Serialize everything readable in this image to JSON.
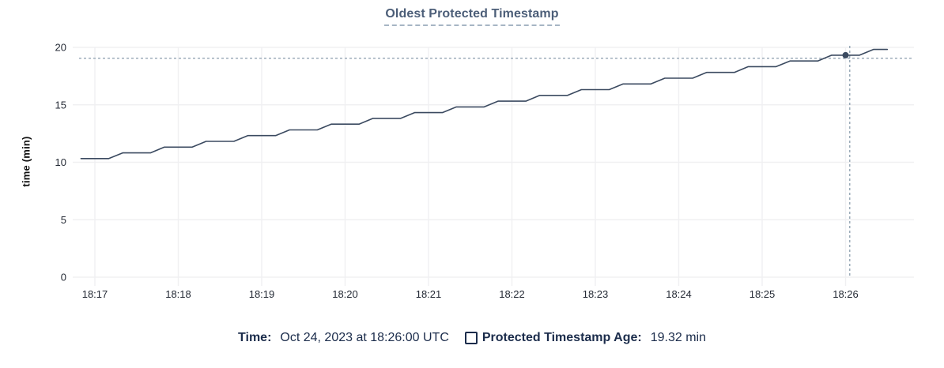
{
  "chart_data": {
    "type": "line",
    "title": "Oldest Protected Timestamp",
    "xlabel": "",
    "ylabel": "time (min)",
    "ylim": [
      0,
      20
    ],
    "yticks": [
      0,
      5,
      10,
      15,
      20
    ],
    "xticks": [
      "18:17",
      "18:18",
      "18:19",
      "18:20",
      "18:21",
      "18:22",
      "18:23",
      "18:24",
      "18:25",
      "18:26"
    ],
    "grid": true,
    "legend_position": "bottom",
    "series": [
      {
        "name": "Protected Timestamp Age",
        "unit": "min",
        "points": [
          [
            "18:16:50",
            10.32
          ],
          [
            "18:17:00",
            10.32
          ],
          [
            "18:17:10",
            10.32
          ],
          [
            "18:17:20",
            10.82
          ],
          [
            "18:17:30",
            10.82
          ],
          [
            "18:17:40",
            10.82
          ],
          [
            "18:17:50",
            11.32
          ],
          [
            "18:18:00",
            11.32
          ],
          [
            "18:18:10",
            11.32
          ],
          [
            "18:18:20",
            11.82
          ],
          [
            "18:18:30",
            11.82
          ],
          [
            "18:18:40",
            11.82
          ],
          [
            "18:18:50",
            12.32
          ],
          [
            "18:19:00",
            12.32
          ],
          [
            "18:19:10",
            12.32
          ],
          [
            "18:19:20",
            12.82
          ],
          [
            "18:19:30",
            12.82
          ],
          [
            "18:19:40",
            12.82
          ],
          [
            "18:19:50",
            13.32
          ],
          [
            "18:20:00",
            13.32
          ],
          [
            "18:20:10",
            13.32
          ],
          [
            "18:20:20",
            13.82
          ],
          [
            "18:20:30",
            13.82
          ],
          [
            "18:20:40",
            13.82
          ],
          [
            "18:20:50",
            14.32
          ],
          [
            "18:21:00",
            14.32
          ],
          [
            "18:21:10",
            14.32
          ],
          [
            "18:21:20",
            14.82
          ],
          [
            "18:21:30",
            14.82
          ],
          [
            "18:21:40",
            14.82
          ],
          [
            "18:21:50",
            15.32
          ],
          [
            "18:22:00",
            15.32
          ],
          [
            "18:22:10",
            15.32
          ],
          [
            "18:22:20",
            15.82
          ],
          [
            "18:22:30",
            15.82
          ],
          [
            "18:22:40",
            15.82
          ],
          [
            "18:22:50",
            16.32
          ],
          [
            "18:23:00",
            16.32
          ],
          [
            "18:23:10",
            16.32
          ],
          [
            "18:23:20",
            16.82
          ],
          [
            "18:23:30",
            16.82
          ],
          [
            "18:23:40",
            16.82
          ],
          [
            "18:23:50",
            17.32
          ],
          [
            "18:24:00",
            17.32
          ],
          [
            "18:24:10",
            17.32
          ],
          [
            "18:24:20",
            17.82
          ],
          [
            "18:24:30",
            17.82
          ],
          [
            "18:24:40",
            17.82
          ],
          [
            "18:24:50",
            18.32
          ],
          [
            "18:25:00",
            18.32
          ],
          [
            "18:25:10",
            18.32
          ],
          [
            "18:25:20",
            18.82
          ],
          [
            "18:25:30",
            18.82
          ],
          [
            "18:25:40",
            18.82
          ],
          [
            "18:25:50",
            19.32
          ],
          [
            "18:26:00",
            19.32
          ],
          [
            "18:26:10",
            19.32
          ],
          [
            "18:26:20",
            19.82
          ],
          [
            "18:26:30",
            19.82
          ]
        ]
      }
    ],
    "highlight_point": {
      "time": "18:26:00",
      "value": 19.32
    },
    "crosshair": {
      "time": "18:26:03",
      "value": 19.05
    }
  },
  "tooltip": {
    "time_label": "Time:",
    "time_value": "Oct 24, 2023 at 18:26:00 UTC",
    "series_label": "Protected Timestamp Age:",
    "series_value": "19.32 min"
  },
  "colors": {
    "line": "#3b4a60",
    "title": "#4c5e78",
    "title_underline": "#a6b5c4",
    "legend_text": "#1b2c4b",
    "axis_text": "#242a35",
    "grid": "#f0f0f2",
    "crosshair": "#94a5b4"
  }
}
